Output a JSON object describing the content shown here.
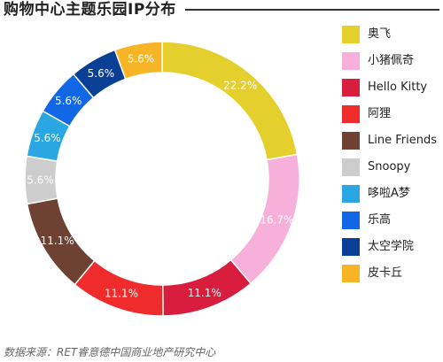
{
  "chart_data": {
    "type": "pie",
    "title": "购物中心主题乐园IP分布",
    "categories": [
      "奥飞",
      "小猪佩奇",
      "Hello Kitty",
      "阿狸",
      "Line Friends",
      "Snoopy",
      "哆啦A梦",
      "乐高",
      "太空学院",
      "皮卡丘"
    ],
    "values": [
      22.2,
      16.7,
      11.1,
      11.1,
      11.1,
      5.6,
      5.6,
      5.6,
      5.6,
      5.6
    ],
    "labels": [
      "22.2%",
      "16.7%",
      "11.1%",
      "11.1%",
      "11.1%",
      "5.6%",
      "5.6%",
      "5.6%",
      "5.6%",
      "5.6%"
    ],
    "colors": [
      "#e5cf2c",
      "#f7b0da",
      "#d81d3f",
      "#f02b2c",
      "#6e4133",
      "#cdcdcd",
      "#2aa7e2",
      "#1167e6",
      "#0a3f96",
      "#f7b526"
    ],
    "label_colors": [
      "#ffffff",
      "#ffffff",
      "#ffffff",
      "#ffffff",
      "#ffffff",
      "#ffffff",
      "#ffffff",
      "#ffffff",
      "#ffffff",
      "#ffffff"
    ],
    "legend_position": "right",
    "donut": true
  },
  "footnote": "数据来源：RET睿意德中国商业地产研究中心"
}
